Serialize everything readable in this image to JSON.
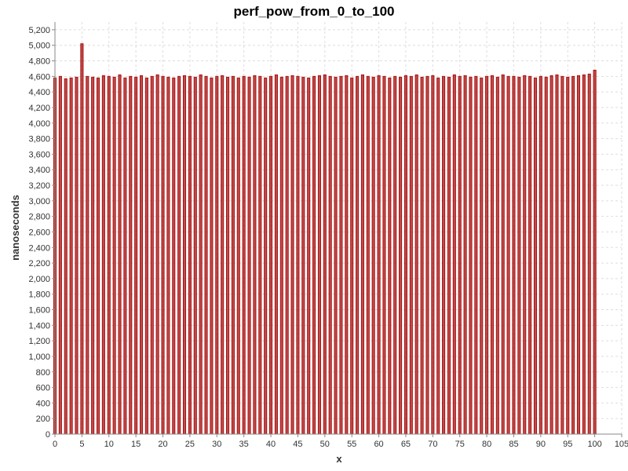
{
  "chart_data": {
    "type": "bar",
    "title": "perf_pow_from_0_to_100",
    "xlabel": "x",
    "ylabel": "nanoseconds",
    "xlim": [
      0,
      105
    ],
    "ylim": [
      0,
      5300
    ],
    "xticks": [
      "0",
      "5",
      "10",
      "15",
      "20",
      "25",
      "30",
      "35",
      "40",
      "45",
      "50",
      "55",
      "60",
      "65",
      "70",
      "75",
      "80",
      "85",
      "90",
      "95",
      "100",
      "105"
    ],
    "yticks": [
      "0",
      "200",
      "400",
      "600",
      "800",
      "1,000",
      "1,200",
      "1,400",
      "1,600",
      "1,800",
      "2,000",
      "2,200",
      "2,400",
      "2,600",
      "2,800",
      "3,000",
      "3,200",
      "3,400",
      "3,600",
      "3,800",
      "4,000",
      "4,200",
      "4,400",
      "4,600",
      "4,800",
      "5,000",
      "5,200"
    ],
    "grid": true,
    "legend": "none",
    "series_color": "#aa1111",
    "x": [
      0,
      1,
      2,
      3,
      4,
      5,
      6,
      7,
      8,
      9,
      10,
      11,
      12,
      13,
      14,
      15,
      16,
      17,
      18,
      19,
      20,
      21,
      22,
      23,
      24,
      25,
      26,
      27,
      28,
      29,
      30,
      31,
      32,
      33,
      34,
      35,
      36,
      37,
      38,
      39,
      40,
      41,
      42,
      43,
      44,
      45,
      46,
      47,
      48,
      49,
      50,
      51,
      52,
      53,
      54,
      55,
      56,
      57,
      58,
      59,
      60,
      61,
      62,
      63,
      64,
      65,
      66,
      67,
      68,
      69,
      70,
      71,
      72,
      73,
      74,
      75,
      76,
      77,
      78,
      79,
      80,
      81,
      82,
      83,
      84,
      85,
      86,
      87,
      88,
      89,
      90,
      91,
      92,
      93,
      94,
      95,
      96,
      97,
      98,
      99,
      100
    ],
    "values": [
      4580,
      4600,
      4570,
      4580,
      4590,
      5020,
      4600,
      4590,
      4580,
      4610,
      4600,
      4590,
      4620,
      4580,
      4600,
      4590,
      4610,
      4580,
      4600,
      4620,
      4600,
      4590,
      4580,
      4600,
      4610,
      4600,
      4590,
      4620,
      4600,
      4580,
      4600,
      4610,
      4590,
      4600,
      4580,
      4600,
      4590,
      4610,
      4600,
      4580,
      4600,
      4620,
      4590,
      4600,
      4610,
      4600,
      4590,
      4580,
      4600,
      4610,
      4620,
      4600,
      4590,
      4600,
      4610,
      4580,
      4600,
      4620,
      4600,
      4590,
      4610,
      4600,
      4580,
      4600,
      4590,
      4610,
      4600,
      4620,
      4590,
      4600,
      4610,
      4580,
      4600,
      4590,
      4620,
      4600,
      4610,
      4590,
      4600,
      4580,
      4600,
      4610,
      4590,
      4620,
      4600,
      4600,
      4590,
      4610,
      4600,
      4580,
      4600,
      4590,
      4610,
      4620,
      4600,
      4590,
      4600,
      4610,
      4620,
      4630,
      4680
    ]
  }
}
